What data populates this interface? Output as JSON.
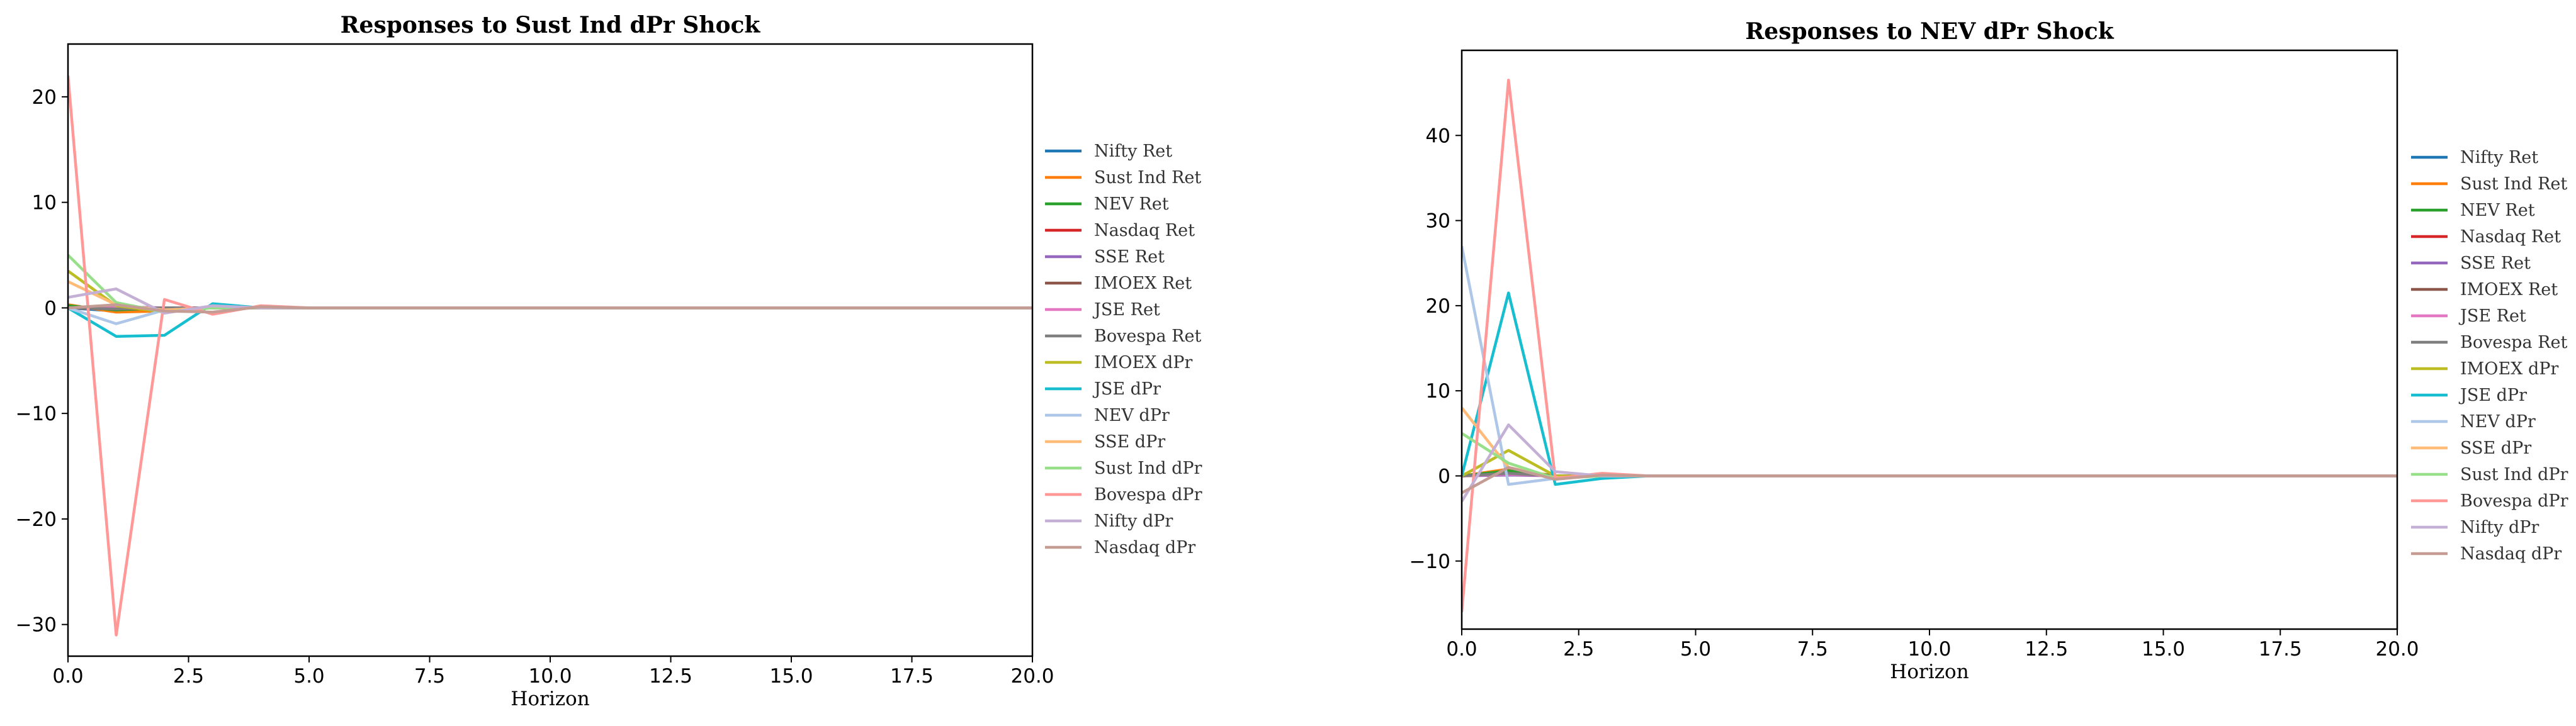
{
  "series_names": [
    "Nifty Ret",
    "Sust Ind Ret",
    "NEV Ret",
    "Nasdaq Ret",
    "SSE Ret",
    "IMOEX Ret",
    "JSE Ret",
    "Bovespa Ret",
    "IMOEX dPr",
    "JSE dPr",
    "NEV dPr",
    "SSE dPr",
    "Sust Ind dPr",
    "Bovespa dPr",
    "Nifty dPr",
    "Nasdaq dPr"
  ],
  "series_colors": [
    "#1f77b4",
    "#ff7f0e",
    "#2ca02c",
    "#d62728",
    "#9467bd",
    "#8c564b",
    "#e377c2",
    "#7f7f7f",
    "#bcbd22",
    "#17becf",
    "#aec7e8",
    "#ffbb78",
    "#98df8a",
    "#ff9896",
    "#c5b0d5",
    "#c49c94"
  ],
  "chart_data": [
    {
      "type": "line",
      "title": "Responses to Sust Ind dPr Shock",
      "xlabel": "Horizon",
      "ylabel": "",
      "xlim": [
        0,
        20
      ],
      "ylim": [
        -33,
        25
      ],
      "xticks": [
        "0.0",
        "2.5",
        "5.0",
        "7.5",
        "10.0",
        "12.5",
        "15.0",
        "17.5",
        "20.0"
      ],
      "yticks": [
        -30,
        -20,
        -10,
        0,
        10,
        20
      ],
      "ytick_labels": [
        "−30",
        "−20",
        "−10",
        "0",
        "10",
        "20"
      ],
      "legend": "right, outside",
      "x": [
        0,
        1,
        2,
        3,
        4,
        5,
        6,
        7,
        8,
        9,
        10,
        11,
        12,
        13,
        14,
        15,
        16,
        17,
        18,
        19,
        20
      ],
      "series": [
        {
          "name": "Nifty Ret",
          "values": [
            0,
            -0.3,
            -0.1,
            0,
            0,
            0,
            0,
            0,
            0,
            0,
            0,
            0,
            0,
            0,
            0,
            0,
            0,
            0,
            0,
            0,
            0
          ]
        },
        {
          "name": "Sust Ind Ret",
          "values": [
            0.3,
            -0.4,
            -0.3,
            0.1,
            0,
            0,
            0,
            0,
            0,
            0,
            0,
            0,
            0,
            0,
            0,
            0,
            0,
            0,
            0,
            0,
            0
          ]
        },
        {
          "name": "NEV Ret",
          "values": [
            0.2,
            -0.2,
            0,
            0,
            0,
            0,
            0,
            0,
            0,
            0,
            0,
            0,
            0,
            0,
            0,
            0,
            0,
            0,
            0,
            0,
            0
          ]
        },
        {
          "name": "Nasdaq Ret",
          "values": [
            0,
            -0.1,
            0,
            0,
            0,
            0,
            0,
            0,
            0,
            0,
            0,
            0,
            0,
            0,
            0,
            0,
            0,
            0,
            0,
            0,
            0
          ]
        },
        {
          "name": "SSE Ret",
          "values": [
            0,
            0.1,
            0,
            0,
            0,
            0,
            0,
            0,
            0,
            0,
            0,
            0,
            0,
            0,
            0,
            0,
            0,
            0,
            0,
            0,
            0
          ]
        },
        {
          "name": "IMOEX Ret",
          "values": [
            0,
            -0.1,
            0,
            0,
            0,
            0,
            0,
            0,
            0,
            0,
            0,
            0,
            0,
            0,
            0,
            0,
            0,
            0,
            0,
            0,
            0
          ]
        },
        {
          "name": "JSE Ret",
          "values": [
            0,
            0,
            0,
            0,
            0,
            0,
            0,
            0,
            0,
            0,
            0,
            0,
            0,
            0,
            0,
            0,
            0,
            0,
            0,
            0,
            0
          ]
        },
        {
          "name": "Bovespa Ret",
          "values": [
            0,
            -0.1,
            0,
            0,
            0,
            0,
            0,
            0,
            0,
            0,
            0,
            0,
            0,
            0,
            0,
            0,
            0,
            0,
            0,
            0,
            0
          ]
        },
        {
          "name": "IMOEX dPr",
          "values": [
            3.5,
            0.2,
            -0.4,
            0.1,
            0,
            0,
            0,
            0,
            0,
            0,
            0,
            0,
            0,
            0,
            0,
            0,
            0,
            0,
            0,
            0,
            0
          ]
        },
        {
          "name": "JSE dPr",
          "values": [
            0,
            -2.7,
            -2.6,
            0.4,
            0,
            0,
            0,
            0,
            0,
            0,
            0,
            0,
            0,
            0,
            0,
            0,
            0,
            0,
            0,
            0,
            0
          ]
        },
        {
          "name": "NEV dPr",
          "values": [
            0,
            -1.5,
            -0.2,
            0,
            0,
            0,
            0,
            0,
            0,
            0,
            0,
            0,
            0,
            0,
            0,
            0,
            0,
            0,
            0,
            0,
            0
          ]
        },
        {
          "name": "SSE dPr",
          "values": [
            2.5,
            0.3,
            -0.2,
            0,
            0,
            0,
            0,
            0,
            0,
            0,
            0,
            0,
            0,
            0,
            0,
            0,
            0,
            0,
            0,
            0,
            0
          ]
        },
        {
          "name": "Sust Ind dPr",
          "values": [
            5,
            0.5,
            -0.4,
            0,
            0,
            0,
            0,
            0,
            0,
            0,
            0,
            0,
            0,
            0,
            0,
            0,
            0,
            0,
            0,
            0,
            0
          ]
        },
        {
          "name": "Bovespa dPr",
          "values": [
            22,
            -31,
            0.8,
            -0.6,
            0.2,
            0,
            0,
            0,
            0,
            0,
            0,
            0,
            0,
            0,
            0,
            0,
            0,
            0,
            0,
            0,
            0
          ]
        },
        {
          "name": "Nifty dPr",
          "values": [
            1,
            1.8,
            -0.5,
            0.2,
            0,
            0,
            0,
            0,
            0,
            0,
            0,
            0,
            0,
            0,
            0,
            0,
            0,
            0,
            0,
            0,
            0
          ]
        },
        {
          "name": "Nasdaq dPr",
          "values": [
            0,
            0.3,
            -0.3,
            -0.4,
            0.1,
            0,
            0,
            0,
            0,
            0,
            0,
            0,
            0,
            0,
            0,
            0,
            0,
            0,
            0,
            0,
            0
          ]
        }
      ]
    },
    {
      "type": "line",
      "title": "Responses to NEV dPr Shock",
      "xlabel": "Horizon",
      "ylabel": "",
      "xlim": [
        0,
        20
      ],
      "ylim": [
        -18,
        50
      ],
      "xticks": [
        "0.0",
        "2.5",
        "5.0",
        "7.5",
        "10.0",
        "12.5",
        "15.0",
        "17.5",
        "20.0"
      ],
      "yticks": [
        -10,
        0,
        10,
        20,
        30,
        40
      ],
      "ytick_labels": [
        "−10",
        "0",
        "10",
        "20",
        "30",
        "40"
      ],
      "legend": "right, outside",
      "x": [
        0,
        1,
        2,
        3,
        4,
        5,
        6,
        7,
        8,
        9,
        10,
        11,
        12,
        13,
        14,
        15,
        16,
        17,
        18,
        19,
        20
      ],
      "series": [
        {
          "name": "Nifty Ret",
          "values": [
            0,
            0.5,
            -0.1,
            0,
            0,
            0,
            0,
            0,
            0,
            0,
            0,
            0,
            0,
            0,
            0,
            0,
            0,
            0,
            0,
            0,
            0
          ]
        },
        {
          "name": "Sust Ind Ret",
          "values": [
            0,
            0.8,
            0,
            0,
            0,
            0,
            0,
            0,
            0,
            0,
            0,
            0,
            0,
            0,
            0,
            0,
            0,
            0,
            0,
            0,
            0
          ]
        },
        {
          "name": "NEV Ret",
          "values": [
            0,
            0.6,
            0,
            0,
            0,
            0,
            0,
            0,
            0,
            0,
            0,
            0,
            0,
            0,
            0,
            0,
            0,
            0,
            0,
            0,
            0
          ]
        },
        {
          "name": "Nasdaq Ret",
          "values": [
            0,
            0.2,
            0,
            0,
            0,
            0,
            0,
            0,
            0,
            0,
            0,
            0,
            0,
            0,
            0,
            0,
            0,
            0,
            0,
            0,
            0
          ]
        },
        {
          "name": "SSE Ret",
          "values": [
            0,
            0.1,
            0,
            0,
            0,
            0,
            0,
            0,
            0,
            0,
            0,
            0,
            0,
            0,
            0,
            0,
            0,
            0,
            0,
            0,
            0
          ]
        },
        {
          "name": "IMOEX Ret",
          "values": [
            0,
            0.3,
            0,
            0,
            0,
            0,
            0,
            0,
            0,
            0,
            0,
            0,
            0,
            0,
            0,
            0,
            0,
            0,
            0,
            0,
            0
          ]
        },
        {
          "name": "JSE Ret",
          "values": [
            0,
            0.2,
            0,
            0,
            0,
            0,
            0,
            0,
            0,
            0,
            0,
            0,
            0,
            0,
            0,
            0,
            0,
            0,
            0,
            0,
            0
          ]
        },
        {
          "name": "Bovespa Ret",
          "values": [
            0,
            0.3,
            0,
            0,
            0,
            0,
            0,
            0,
            0,
            0,
            0,
            0,
            0,
            0,
            0,
            0,
            0,
            0,
            0,
            0,
            0
          ]
        },
        {
          "name": "IMOEX dPr",
          "values": [
            0,
            3,
            0,
            0,
            0,
            0,
            0,
            0,
            0,
            0,
            0,
            0,
            0,
            0,
            0,
            0,
            0,
            0,
            0,
            0,
            0
          ]
        },
        {
          "name": "JSE dPr",
          "values": [
            0,
            21.5,
            -1,
            -0.3,
            0,
            0,
            0,
            0,
            0,
            0,
            0,
            0,
            0,
            0,
            0,
            0,
            0,
            0,
            0,
            0,
            0
          ]
        },
        {
          "name": "NEV dPr",
          "values": [
            27,
            -1,
            -0.3,
            0.2,
            0,
            0,
            0,
            0,
            0,
            0,
            0,
            0,
            0,
            0,
            0,
            0,
            0,
            0,
            0,
            0,
            0
          ]
        },
        {
          "name": "SSE dPr",
          "values": [
            8,
            1,
            -0.2,
            0,
            0,
            0,
            0,
            0,
            0,
            0,
            0,
            0,
            0,
            0,
            0,
            0,
            0,
            0,
            0,
            0,
            0
          ]
        },
        {
          "name": "Sust Ind dPr",
          "values": [
            5,
            1.5,
            -0.3,
            0,
            0,
            0,
            0,
            0,
            0,
            0,
            0,
            0,
            0,
            0,
            0,
            0,
            0,
            0,
            0,
            0,
            0
          ]
        },
        {
          "name": "Bovespa dPr",
          "values": [
            -16,
            46.5,
            -0.3,
            0.3,
            0,
            0,
            0,
            0,
            0,
            0,
            0,
            0,
            0,
            0,
            0,
            0,
            0,
            0,
            0,
            0,
            0
          ]
        },
        {
          "name": "Nifty dPr",
          "values": [
            -3,
            6,
            0.5,
            0,
            0,
            0,
            0,
            0,
            0,
            0,
            0,
            0,
            0,
            0,
            0,
            0,
            0,
            0,
            0,
            0,
            0
          ]
        },
        {
          "name": "Nasdaq dPr",
          "values": [
            -2,
            1,
            -0.4,
            0.1,
            0,
            0,
            0,
            0,
            0,
            0,
            0,
            0,
            0,
            0,
            0,
            0,
            0,
            0,
            0,
            0,
            0
          ]
        }
      ]
    }
  ]
}
